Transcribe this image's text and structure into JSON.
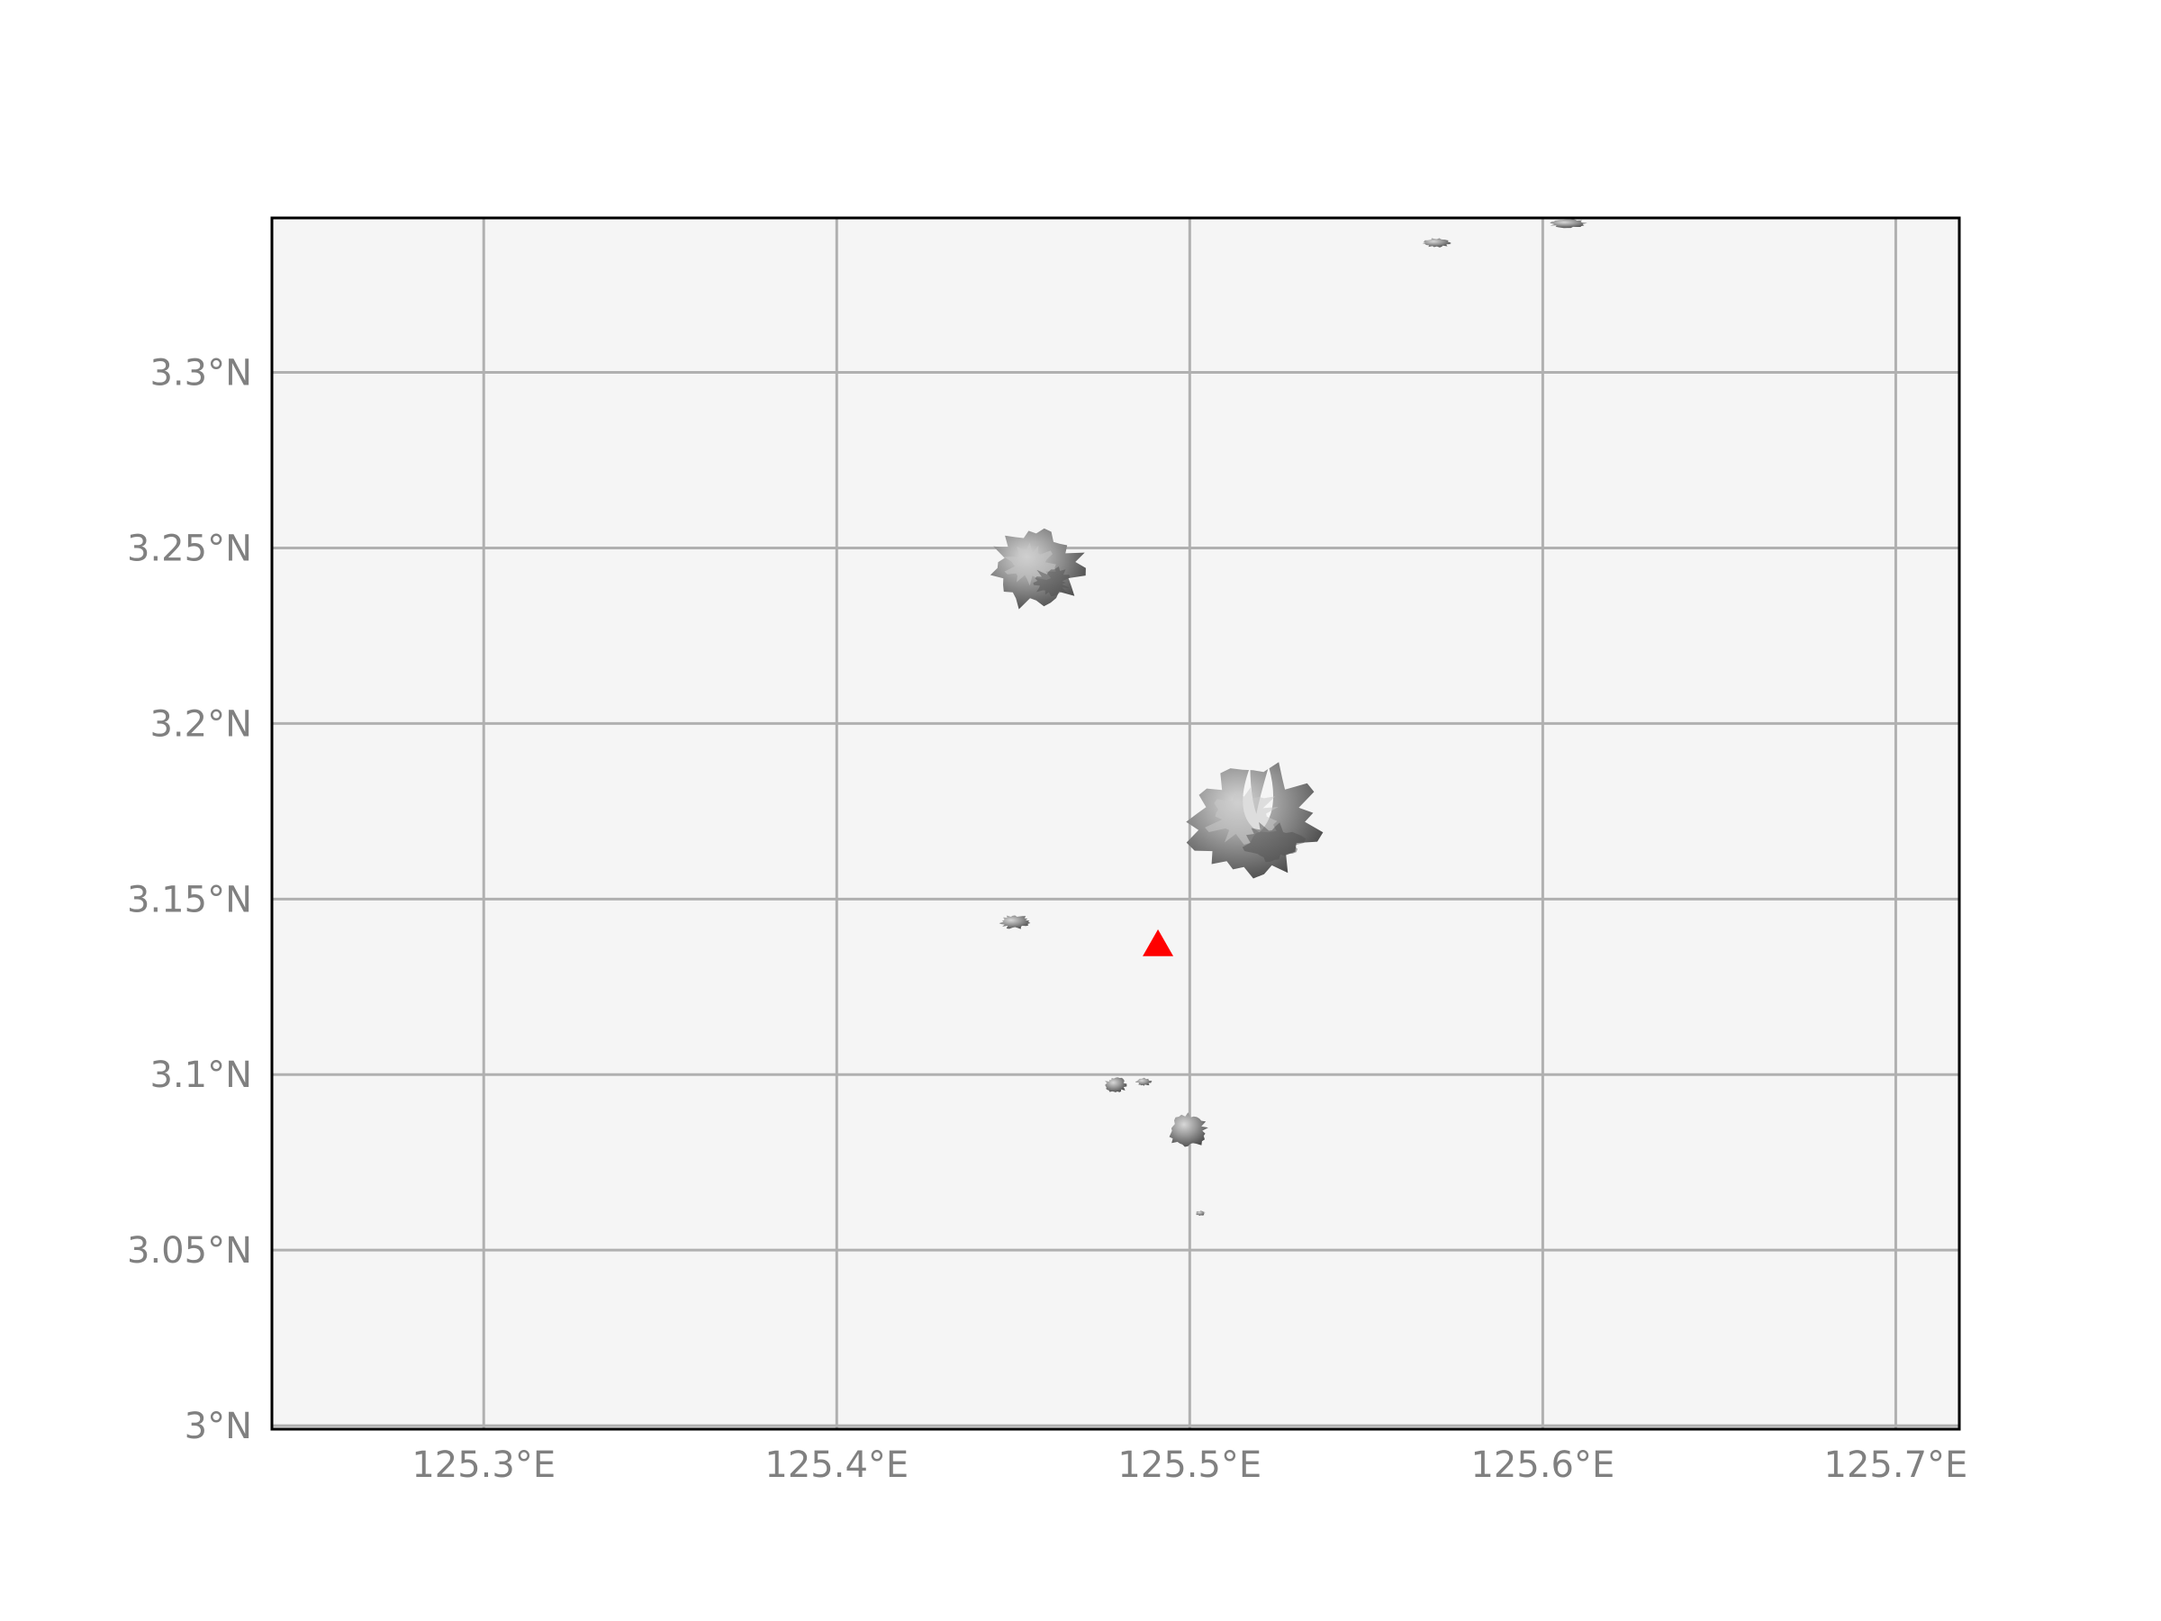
{
  "map": {
    "projection": "PlateCarree",
    "extent": {
      "lon_min": 125.24,
      "lon_max": 125.718,
      "lat_min": 2.999,
      "lat_max": 3.344
    },
    "background_color": "#f5f5f5",
    "terrain_style": "grayscale shaded relief",
    "gridlines": true,
    "gridline_color": "#b0b0b0",
    "x_ticks": [
      {
        "value": 125.3,
        "label": "125.3°E"
      },
      {
        "value": 125.4,
        "label": "125.4°E"
      },
      {
        "value": 125.5,
        "label": "125.5°E"
      },
      {
        "value": 125.6,
        "label": "125.6°E"
      },
      {
        "value": 125.7,
        "label": "125.7°E"
      }
    ],
    "y_ticks": [
      {
        "value": 3.0,
        "label": "3°N"
      },
      {
        "value": 3.05,
        "label": "3.05°N"
      },
      {
        "value": 3.1,
        "label": "3.1°N"
      },
      {
        "value": 3.15,
        "label": "3.15°N"
      },
      {
        "value": 3.2,
        "label": "3.2°N"
      },
      {
        "value": 3.25,
        "label": "3.25°N"
      },
      {
        "value": 3.3,
        "label": "3.3°N"
      }
    ],
    "marker": {
      "symbol": "triangle",
      "color": "#ff0000",
      "lon": 125.491,
      "lat": 3.137
    },
    "islands": [
      {
        "name": "island-large-north",
        "lon": 125.4565,
        "lat": 3.2443,
        "r_lon": 0.012,
        "r_lat": 0.0105
      },
      {
        "name": "island-crescent",
        "lon": 125.518,
        "lat": 3.172,
        "r_lon": 0.0175,
        "r_lat": 0.015
      },
      {
        "name": "islet-west-1",
        "lon": 125.4505,
        "lat": 3.1435,
        "r_lon": 0.004,
        "r_lat": 0.0018
      },
      {
        "name": "islet-south-1",
        "lon": 125.479,
        "lat": 3.097,
        "r_lon": 0.003,
        "r_lat": 0.002
      },
      {
        "name": "islet-south-2",
        "lon": 125.487,
        "lat": 3.098,
        "r_lon": 0.002,
        "r_lat": 0.001
      },
      {
        "name": "island-south",
        "lon": 125.4995,
        "lat": 3.084,
        "r_lon": 0.005,
        "r_lat": 0.0045
      },
      {
        "name": "islet-far-south",
        "lon": 125.503,
        "lat": 3.0605,
        "r_lon": 0.0012,
        "r_lat": 0.0006
      },
      {
        "name": "islet-north-1",
        "lon": 125.57,
        "lat": 3.337,
        "r_lon": 0.004,
        "r_lat": 0.0012
      },
      {
        "name": "islet-north-2",
        "lon": 125.607,
        "lat": 3.3425,
        "r_lon": 0.005,
        "r_lat": 0.0012
      }
    ]
  }
}
